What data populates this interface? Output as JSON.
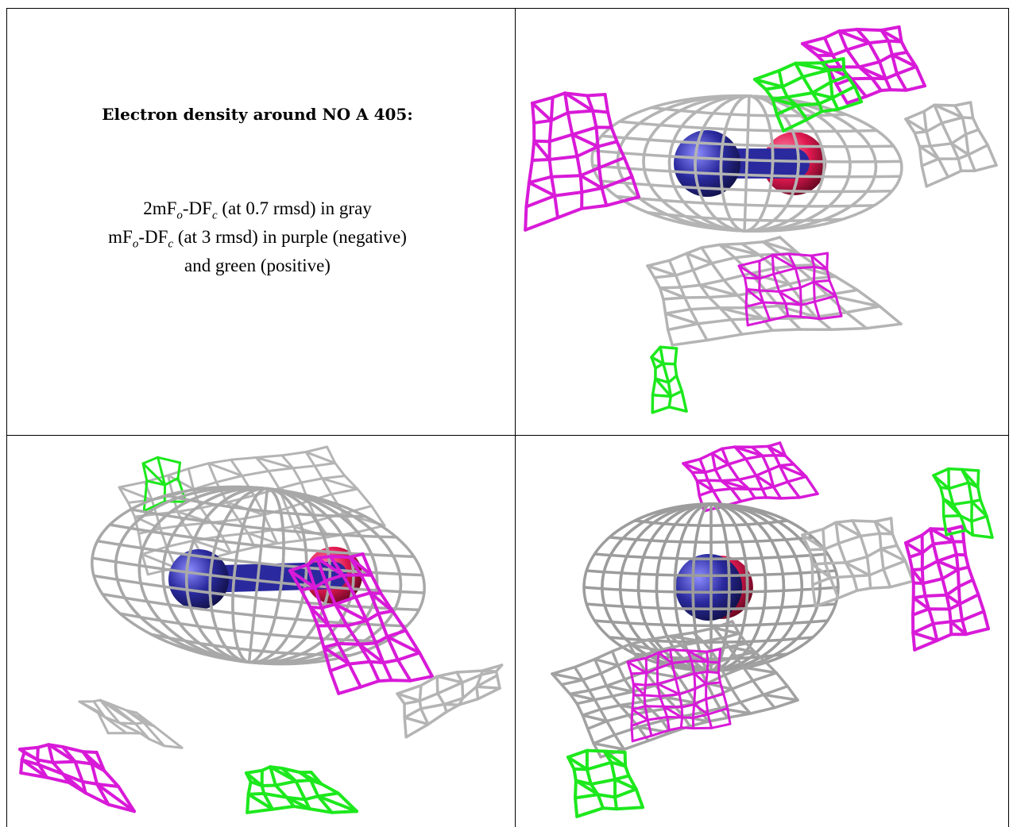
{
  "caption": {
    "title": "Electron density around NO A 405:",
    "line1_prefix": "2mF",
    "line1_sub1": "o",
    "line1_mid": "-DF",
    "line1_sub2": "c",
    "line1_suffix": " (at 0.7 rmsd) in gray",
    "line2_prefix": "mF",
    "line2_sub1": "o",
    "line2_mid": "-DF",
    "line2_sub2": "c",
    "line2_suffix": " (at 3 rmsd) in purple (negative)",
    "line3": "and green (positive)"
  },
  "colors": {
    "gray_mesh": "#b4b4b4",
    "purple_mesh": "#d81ad8",
    "green_mesh": "#1de81d",
    "nitrogen": "#2a2a9e",
    "oxygen": "#e01850"
  },
  "panels": [
    "view-1",
    "view-2",
    "view-3"
  ]
}
